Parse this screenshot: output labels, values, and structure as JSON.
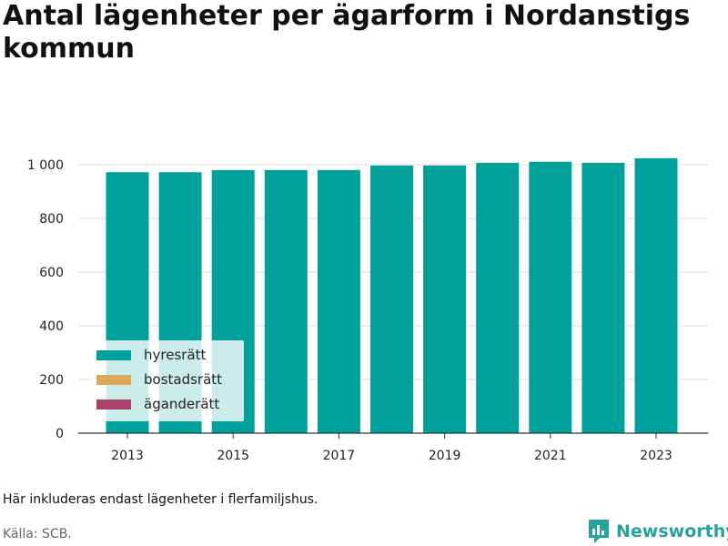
{
  "chart_data": {
    "type": "bar",
    "title": "Antal lägenheter per ägarform i Nordanstigs kommun",
    "categories": [
      "2013",
      "2014",
      "2015",
      "2016",
      "2017",
      "2018",
      "2019",
      "2020",
      "2021",
      "2022",
      "2023"
    ],
    "x_tick_labels": [
      "2013",
      "2015",
      "2017",
      "2019",
      "2021",
      "2023"
    ],
    "series": [
      {
        "name": "hyresrätt",
        "color": "#00a19a",
        "values": [
          972,
          972,
          980,
          980,
          980,
          997,
          997,
          1007,
          1011,
          1007,
          1024
        ]
      },
      {
        "name": "bostadsrätt",
        "color": "#d9a95c",
        "values": [
          0,
          0,
          0,
          0,
          0,
          0,
          0,
          0,
          0,
          0,
          0
        ]
      },
      {
        "name": "äganderätt",
        "color": "#a8416a",
        "values": [
          0,
          0,
          0,
          0,
          0,
          0,
          0,
          0,
          0,
          0,
          0
        ]
      }
    ],
    "ylim": [
      0,
      1000
    ],
    "y_ticks": [
      0,
      200,
      400,
      600,
      800,
      1000
    ],
    "y_tick_labels": [
      "0",
      "200",
      "400",
      "600",
      "800",
      "1 000"
    ],
    "grid": true,
    "legend_position": "bottom-left"
  },
  "note": "Här inkluderas endast lägenheter i flerfamiljshus.",
  "source": "Källa: SCB.",
  "brand": {
    "name": "Newsworthy",
    "color": "#27a39b",
    "icon": "newsworthy-logo-icon"
  }
}
